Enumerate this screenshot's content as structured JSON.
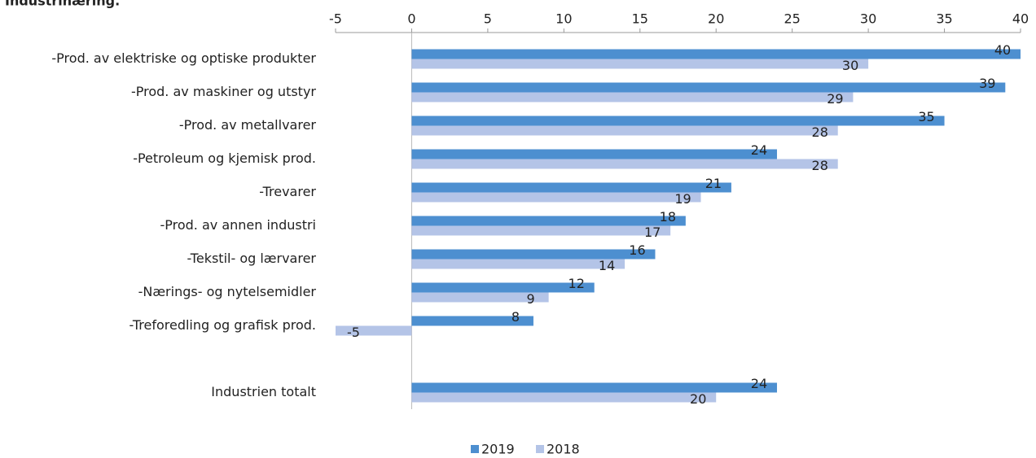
{
  "chart_data": {
    "type": "hbar",
    "title": "Industrinæring.",
    "categories": [
      "-Prod. av elektriske og optiske produkter",
      "-Prod. av maskiner og utstyr",
      "-Prod. av metallvarer",
      "-Petroleum og kjemisk prod.",
      "-Trevarer",
      "-Prod. av annen industri",
      "-Tekstil- og lærvarer",
      "-Nærings- og nytelsemidler",
      "-Treforedling og grafisk prod.",
      null,
      "Industrien totalt"
    ],
    "series": [
      {
        "name": "2019",
        "color": "#4d8fd0",
        "values": [
          40,
          39,
          35,
          24,
          21,
          18,
          16,
          12,
          8,
          null,
          24
        ]
      },
      {
        "name": "2018",
        "color": "#b4c4e7",
        "values": [
          30,
          29,
          28,
          28,
          19,
          17,
          14,
          9,
          -5,
          null,
          20
        ]
      }
    ],
    "xlim": [
      -5,
      40
    ],
    "xticks": [
      -5,
      0,
      5,
      10,
      15,
      20,
      25,
      30,
      35,
      40
    ],
    "legend": "bottom"
  }
}
